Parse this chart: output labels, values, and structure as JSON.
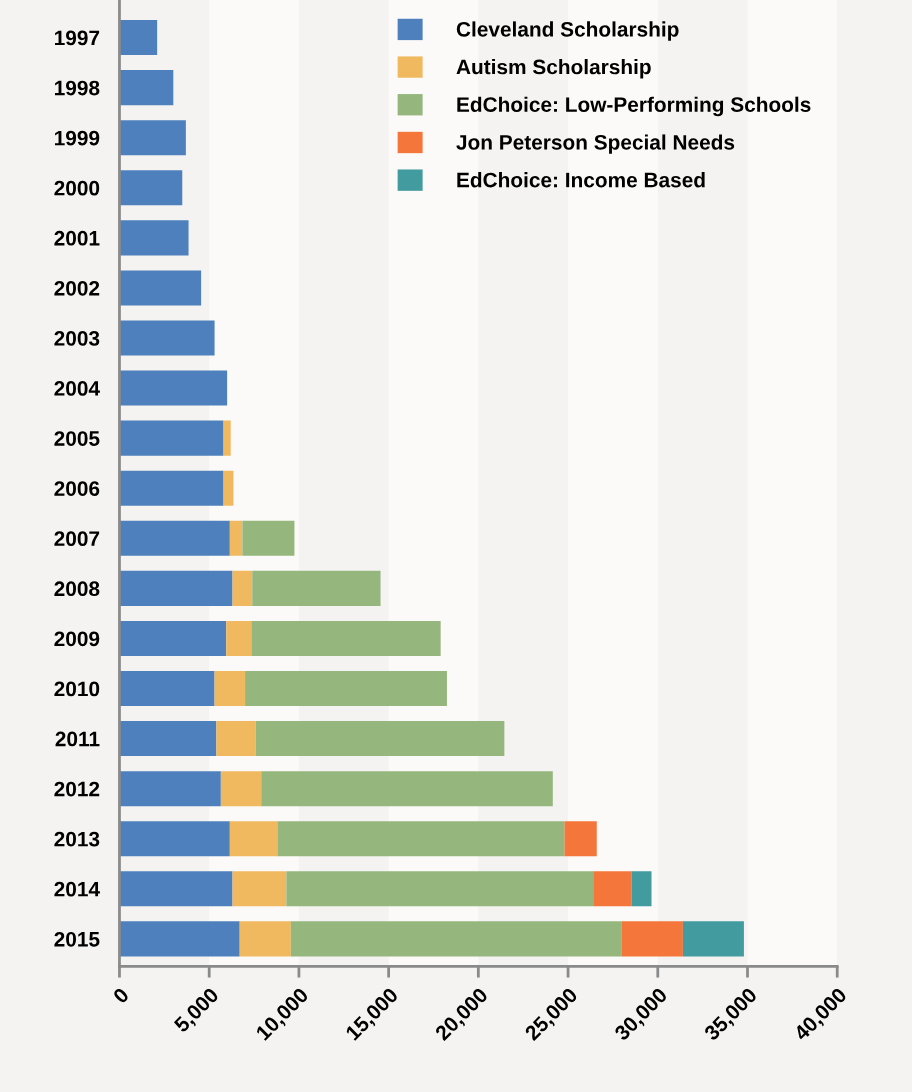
{
  "chart_data": {
    "type": "bar",
    "orientation": "horizontal",
    "stacked": true,
    "categories": [
      "1997",
      "1998",
      "1999",
      "2000",
      "2001",
      "2002",
      "2003",
      "2004",
      "2005",
      "2006",
      "2007",
      "2008",
      "2009",
      "2010",
      "2011",
      "2012",
      "2013",
      "2014",
      "2015"
    ],
    "series": [
      {
        "name": "Cleveland Scholarship",
        "color": "#4e80bd",
        "values": [
          2100,
          3000,
          3700,
          3500,
          3850,
          4550,
          5300,
          6000,
          5800,
          5800,
          6150,
          6300,
          5950,
          5300,
          5400,
          5650,
          6150,
          6300,
          6700
        ]
      },
      {
        "name": "Autism Scholarship",
        "color": "#f0b960",
        "values": [
          null,
          null,
          null,
          null,
          null,
          null,
          null,
          null,
          400,
          550,
          700,
          1100,
          1400,
          1700,
          2200,
          2250,
          2650,
          3000,
          2850
        ]
      },
      {
        "name": "EdChoice: Low-Performing Schools",
        "color": "#95b77e",
        "values": [
          null,
          null,
          null,
          null,
          null,
          null,
          null,
          null,
          null,
          null,
          2900,
          7150,
          10550,
          11250,
          13850,
          16250,
          16000,
          17100,
          18450
        ]
      },
      {
        "name": "Jon Peterson Special Needs",
        "color": "#f4763b",
        "values": [
          null,
          null,
          null,
          null,
          null,
          null,
          null,
          null,
          null,
          null,
          null,
          null,
          null,
          null,
          null,
          null,
          1800,
          2150,
          3400
        ]
      },
      {
        "name": "EdChoice: Income Based",
        "color": "#429b9e",
        "values": [
          null,
          null,
          null,
          null,
          null,
          null,
          null,
          null,
          null,
          null,
          null,
          null,
          null,
          null,
          null,
          null,
          null,
          1100,
          3400
        ]
      }
    ],
    "xlim": [
      0,
      40000
    ],
    "xticks": [
      0,
      {
        "value": 5000,
        "label": "5,000"
      },
      {
        "value": 10000,
        "label": "10,000"
      },
      {
        "value": 15000,
        "label": "15,000"
      },
      {
        "value": 20000,
        "label": "20,000"
      },
      {
        "value": 25000,
        "label": "25,000"
      },
      {
        "value": 30000,
        "label": "30,000"
      },
      {
        "value": 35000,
        "label": "35,000"
      },
      {
        "value": 40000,
        "label": "40,000"
      }
    ],
    "bands": [
      {
        "axis": "x",
        "from": 5000,
        "to": 10000,
        "color": "#fbfaf8"
      },
      {
        "axis": "x",
        "from": 15000,
        "to": 20000,
        "color": "#fbfaf8"
      },
      {
        "axis": "x",
        "from": 25000,
        "to": 30000,
        "color": "#fbfaf8"
      },
      {
        "axis": "x",
        "from": 35000,
        "to": 40000,
        "color": "#fbfaf8"
      }
    ],
    "legend": "top right"
  }
}
